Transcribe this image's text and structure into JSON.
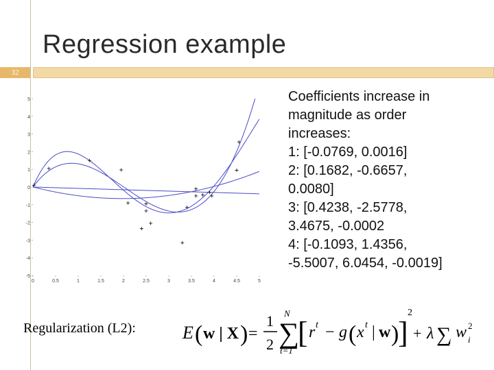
{
  "slide": {
    "title": "Regression example",
    "number": "32",
    "accent_color": "#e8b86a",
    "bar_right_color": "#f2d9a6"
  },
  "text_block": {
    "lines": [
      "Coefficients increase in",
      "magnitude as order",
      "increases:",
      "1: [-0.0769, 0.0016]",
      "2: [0.1682, -0.6657,",
      "0.0080]",
      "3: [0.4238, -2.5778,",
      "3.4675, -0.0002",
      "4: [-0.1093, 1.4356,",
      "-5.5007, 6.0454, -0.0019]"
    ]
  },
  "regularization_label": "Regularization (L2):",
  "formula": {
    "lhs_E": "E",
    "lhs_args": "w | X",
    "equals": "=",
    "frac_num": "1",
    "frac_den": "2",
    "sum_top": "N",
    "sum_bottom": "t=1",
    "r": "r",
    "t_sup": "t",
    "minus": "−",
    "g": "g",
    "x": "x",
    "w": "w",
    "square": "2",
    "plus": "+",
    "lambda": "λ",
    "sum_i": "i",
    "wi": "w",
    "wi_sub": "i",
    "wi_sup": "2"
  },
  "chart_data": {
    "type": "scatter",
    "xlim": [
      0,
      5
    ],
    "ylim": [
      -5,
      5
    ],
    "x_ticks": [
      "0",
      "0.5",
      "1",
      "1.5",
      "2",
      "2.5",
      "3",
      "3.5",
      "4",
      "4.5",
      "5"
    ],
    "y_ticks": [
      "5",
      "4",
      "3",
      "2",
      "1",
      "0",
      "-1",
      "-2",
      "-3",
      "-4",
      "-5"
    ],
    "points": [
      {
        "x": 0.02,
        "y": 0.1
      },
      {
        "x": 0.35,
        "y": 1.05
      },
      {
        "x": 1.25,
        "y": 1.5
      },
      {
        "x": 1.95,
        "y": 0.97
      },
      {
        "x": 2.1,
        "y": -0.9
      },
      {
        "x": 2.5,
        "y": -0.95
      },
      {
        "x": 2.5,
        "y": -1.35
      },
      {
        "x": 2.6,
        "y": -2.05
      },
      {
        "x": 2.4,
        "y": -2.35
      },
      {
        "x": 3.3,
        "y": -3.15
      },
      {
        "x": 3.4,
        "y": -1.15
      },
      {
        "x": 3.6,
        "y": -0.1
      },
      {
        "x": 3.6,
        "y": -0.5
      },
      {
        "x": 3.75,
        "y": -0.45
      },
      {
        "x": 3.9,
        "y": -0.3
      },
      {
        "x": 3.95,
        "y": -0.5
      },
      {
        "x": 4.5,
        "y": 0.95
      },
      {
        "x": 4.55,
        "y": 2.55
      }
    ],
    "series": [
      {
        "coeffs": [
          -0.0769,
          0.0016
        ],
        "color": "#4a4ac8"
      },
      {
        "coeffs": [
          0.1682,
          -0.6657,
          0.008
        ],
        "color": "#4a4ac8"
      },
      {
        "coeffs": [
          0.4238,
          -2.5778,
          3.4675,
          -0.0002
        ],
        "color": "#4a4ac8"
      },
      {
        "coeffs": [
          -0.1093,
          1.4356,
          -5.5007,
          6.0454,
          -0.0019
        ],
        "color": "#4a4ac8"
      }
    ]
  }
}
